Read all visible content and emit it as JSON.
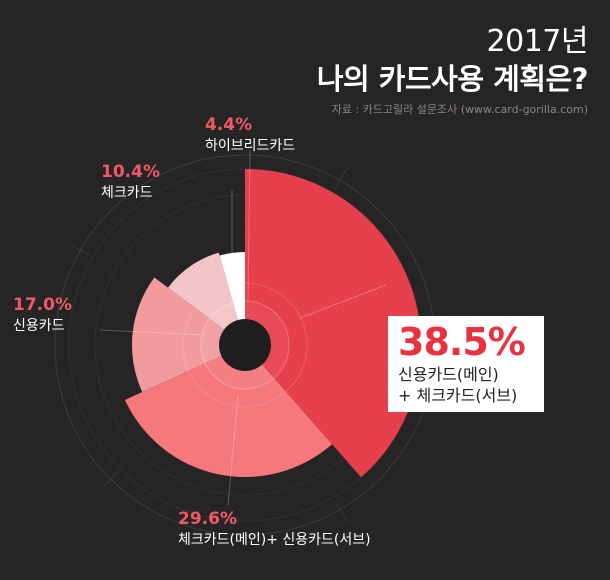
{
  "header": {
    "year": "2017년",
    "title_normal": "나의 ",
    "title_bold": "카드사용 계획",
    "title_tail": "은?",
    "source": "자료 : 카드고릴라 설문조사 (www.card-gorilla.com)"
  },
  "chart_data": {
    "type": "pie",
    "categories": [
      "신용카드(메인) + 체크카드(서브)",
      "체크카드(메인)+ 신용카드(서브)",
      "신용카드",
      "체크카드",
      "하이브리드카드"
    ],
    "values": [
      38.5,
      29.6,
      17.0,
      10.4,
      4.4
    ],
    "colors": [
      "#e8414e",
      "#f4787c",
      "#f19b9e",
      "#f3c5c8",
      "#ffffff"
    ],
    "labels": [
      {
        "pct": "38.5%",
        "lines": [
          "신용카드(메인)",
          "+ 체크카드(서브)"
        ]
      },
      {
        "pct": "29.6%",
        "lines": [
          "체크카드(메인)+ 신용카드(서브)"
        ]
      },
      {
        "pct": "17.0%",
        "lines": [
          "신용카드"
        ]
      },
      {
        "pct": "10.4%",
        "lines": [
          "체크카드"
        ]
      },
      {
        "pct": "4.4%",
        "lines": [
          "하이브리드카드"
        ]
      }
    ],
    "legend": "none"
  }
}
